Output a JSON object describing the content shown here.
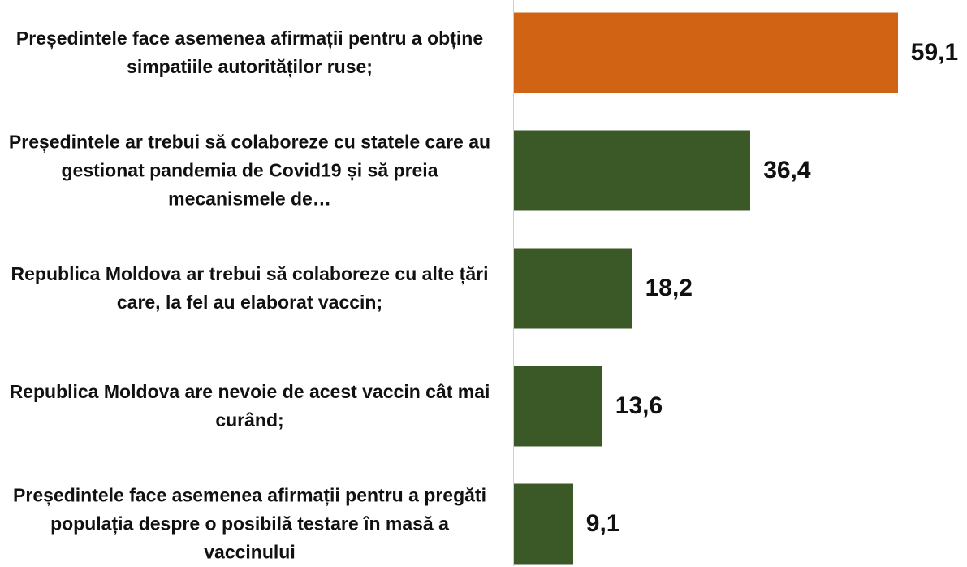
{
  "chart_data": {
    "type": "bar",
    "orientation": "horizontal",
    "categories": [
      "Președintele face asemenea afirmații pentru a obține simpatiile autorităților ruse;",
      "Președintele ar trebui să colaboreze cu statele care au gestionat pandemia de Covid19 și să preia mecanismele de…",
      "Republica Moldova ar trebui să colaboreze cu alte țări care, la fel au elaborat vaccin;",
      "Republica Moldova are nevoie de acest vaccin cât mai curând;",
      "Președintele face asemenea afirmații pentru a pregăti populația despre o posibilă testare în masă a vaccinului"
    ],
    "values": [
      59.1,
      36.4,
      18.2,
      13.6,
      9.1
    ],
    "value_labels": [
      "59,1",
      "36,4",
      "18,2",
      "13,6",
      "9,1"
    ],
    "colors": [
      "#d06414",
      "#3b5927",
      "#3b5927",
      "#3b5927",
      "#3b5927"
    ]
  }
}
